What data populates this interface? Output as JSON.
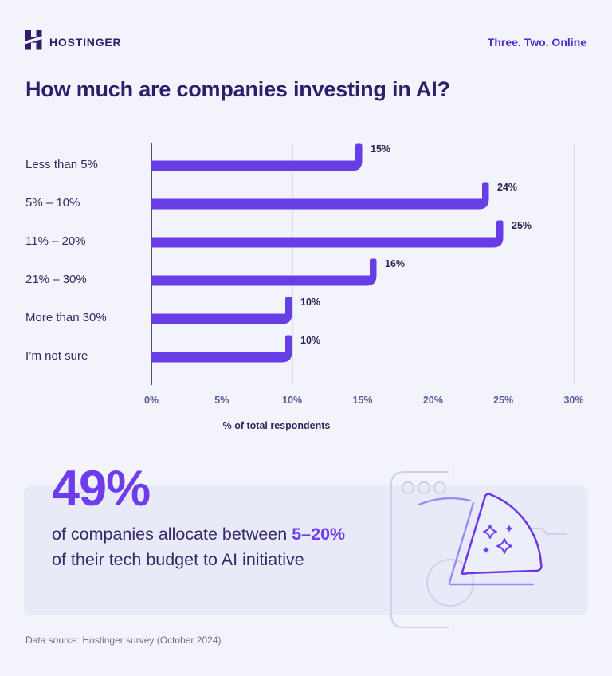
{
  "header": {
    "brand": "HOSTINGER",
    "tagline": "Three. Two. Online"
  },
  "title": "How much are companies investing in AI?",
  "chart_data": {
    "type": "bar",
    "orientation": "horizontal",
    "title": "How much are companies investing in AI?",
    "categories": [
      "Less than 5%",
      "5% – 10%",
      "11% – 20%",
      "21% – 30%",
      "More than 30%",
      "I’m not sure"
    ],
    "values": [
      15,
      24,
      25,
      16,
      10,
      10
    ],
    "value_labels": [
      "15%",
      "24%",
      "25%",
      "16%",
      "10%",
      "10%"
    ],
    "xlabel": "% of total respondents",
    "ylabel": "",
    "x_ticks": [
      "0%",
      "5%",
      "10%",
      "15%",
      "20%",
      "25%",
      "30%"
    ],
    "xlim": [
      0,
      30
    ],
    "grid": true,
    "legend": "none",
    "bar_color": "#673de6"
  },
  "highlight": {
    "stat": "49%",
    "line1_prefix": "of companies allocate between ",
    "line1_accent": "5–20%",
    "line2": "of their tech budget to AI initiative"
  },
  "footer": {
    "source": "Data source: Hostinger survey (October 2024)"
  },
  "colors": {
    "background": "#f2f3fb",
    "card_background": "#e8eaf8",
    "bar": "#673de6",
    "accent": "#6d3ded",
    "heading": "#2f1c6a",
    "tagline": "#5329c9",
    "axis": "#4f4a6e",
    "gridline": "#dcdcf2",
    "muted_text": "#6f7287"
  }
}
